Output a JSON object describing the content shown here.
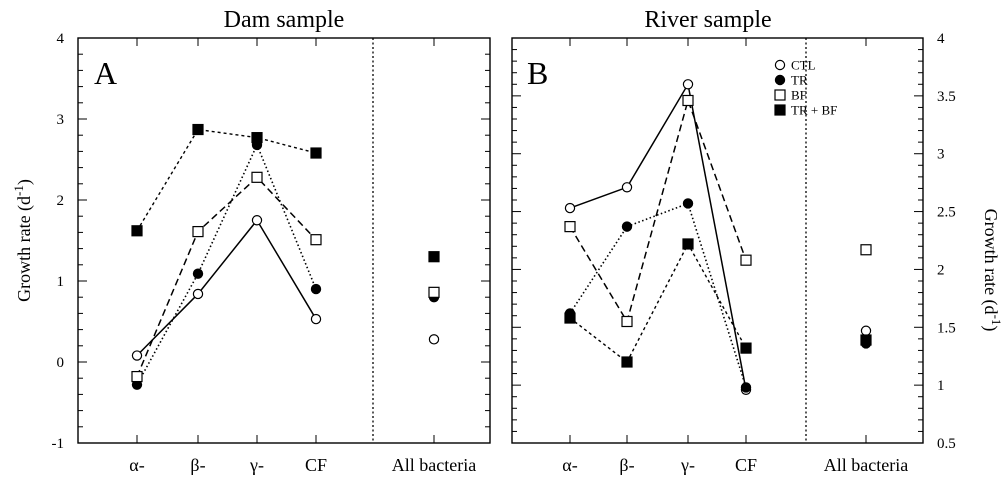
{
  "chart_data": [
    {
      "type": "line",
      "title": "Dam sample",
      "panel_label": "A",
      "ylabel": "Growth rate (d-1)",
      "ylabel_main": "Growth rate (d",
      "ylabel_sup": "-1",
      "ylabel_close": ")",
      "ylim": [
        -1,
        4
      ],
      "yticks": [
        -1,
        0,
        1,
        2,
        3,
        4
      ],
      "ytick_labels": [
        "-1",
        "0",
        "1",
        "2",
        "3",
        "4"
      ],
      "y_axis_side": "left",
      "categories": [
        "α-",
        "β-",
        "γ-",
        "CF"
      ],
      "extra_category": "All bacteria",
      "series": [
        {
          "name": "CTL",
          "marker": "open-circle",
          "line": "solid",
          "values": [
            0.08,
            0.84,
            1.75,
            0.53
          ],
          "all_bacteria": 0.28
        },
        {
          "name": "TR",
          "marker": "filled-circle",
          "line": "dotted",
          "values": [
            -0.28,
            1.09,
            2.68,
            0.9
          ],
          "all_bacteria": 0.8
        },
        {
          "name": "BF",
          "marker": "open-square",
          "line": "dashed",
          "values": [
            -0.18,
            1.61,
            2.28,
            1.51
          ],
          "all_bacteria": 0.86
        },
        {
          "name": "TR + BF",
          "marker": "filled-square",
          "line": "dash-dot",
          "values": [
            1.62,
            2.87,
            2.77,
            2.58
          ],
          "all_bacteria": 1.3
        }
      ]
    },
    {
      "type": "line",
      "title": "River sample",
      "panel_label": "B",
      "ylabel": "Growth rate (d-1)",
      "ylabel_main": "Growth rate (d",
      "ylabel_sup": "-1",
      "ylabel_close": ")",
      "ylim": [
        0.5,
        4
      ],
      "yticks": [
        0.5,
        1,
        1.5,
        2,
        2.5,
        3,
        3.5,
        4
      ],
      "ytick_labels": [
        "0.5",
        "1",
        "1.5",
        "2",
        "2.5",
        "3",
        "3.5",
        "4"
      ],
      "y_axis_side": "right",
      "categories": [
        "α-",
        "β-",
        "γ-",
        "CF"
      ],
      "extra_category": "All bacteria",
      "legend": {
        "position": "top-right",
        "entries": [
          "CTL",
          "TR",
          "BF",
          "TR + BF"
        ]
      },
      "series": [
        {
          "name": "CTL",
          "marker": "open-circle",
          "line": "solid",
          "values": [
            2.53,
            2.71,
            3.6,
            0.96
          ],
          "all_bacteria": 1.47
        },
        {
          "name": "TR",
          "marker": "filled-circle",
          "line": "dotted",
          "values": [
            1.62,
            2.37,
            2.57,
            0.98
          ],
          "all_bacteria": 1.36
        },
        {
          "name": "BF",
          "marker": "open-square",
          "line": "dashed",
          "values": [
            2.37,
            1.55,
            3.46,
            2.08
          ],
          "all_bacteria": 2.17
        },
        {
          "name": "TR + BF",
          "marker": "filled-square",
          "line": "dash-dot",
          "values": [
            1.58,
            1.2,
            2.22,
            1.32
          ],
          "all_bacteria": 1.39
        }
      ]
    }
  ]
}
